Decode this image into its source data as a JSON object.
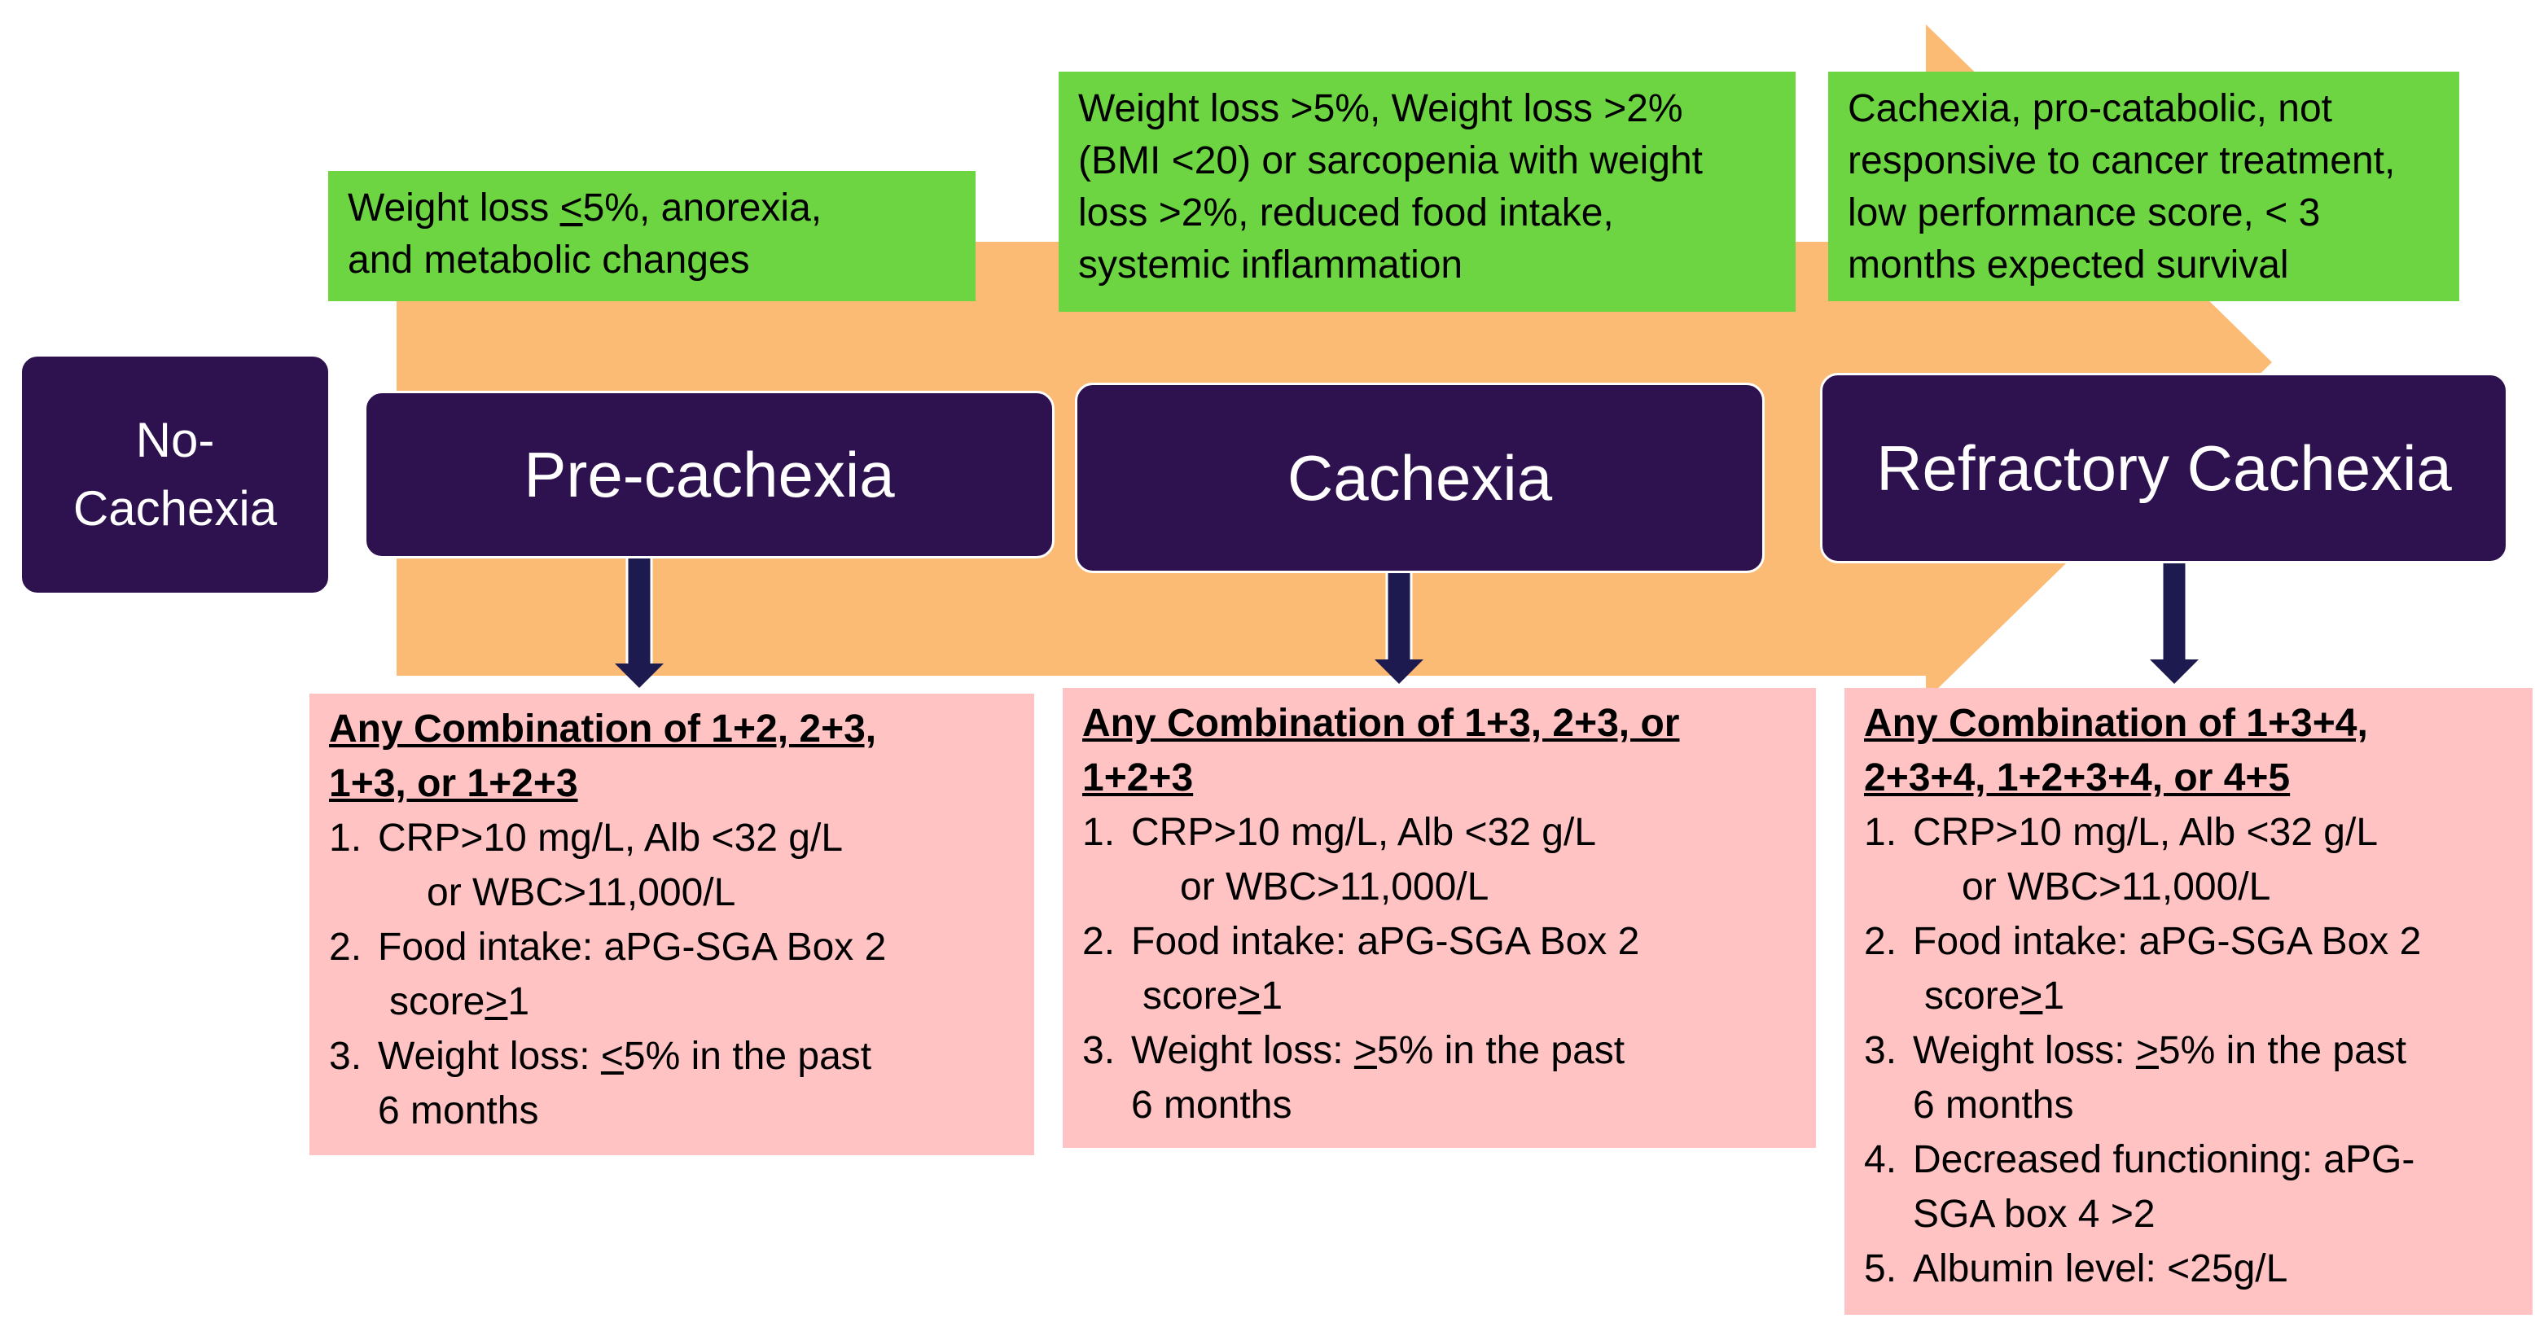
{
  "colors": {
    "band": "#fcbb74",
    "green": "#6dd542",
    "stage": "#2e124f",
    "pink": "#ffc3c3",
    "connector": "#1d1a4f"
  },
  "stages": {
    "no_cachexia": {
      "line1": "No-",
      "line2": "Cachexia"
    },
    "pre_cachexia": "Pre-cachexia",
    "cachexia": "Cachexia",
    "refractory": "Refractory Cachexia"
  },
  "descriptions": {
    "pre_cachexia": {
      "line1_pre": "Weight loss ",
      "line1_sym": "<",
      "line1_post": "5%, anorexia,",
      "line2": "and metabolic changes"
    },
    "cachexia": {
      "line1": "Weight loss >5%, Weight loss >2%",
      "line2": "(BMI <20) or sarcopenia with weight",
      "line3": "loss >2%, reduced food intake,",
      "line4": "systemic inflammation"
    },
    "refractory": {
      "line1": "Cachexia, pro-catabolic, not",
      "line2": "responsive to cancer treatment,",
      "line3": "low performance score, < 3",
      "line4": "months expected survival"
    }
  },
  "criteria": {
    "pre_cachexia": {
      "heading_line1": "Any Combination of 1+2, 2+3,",
      "heading_line2": "1+3, or 1+2+3",
      "c1": {
        "num": "1.",
        "line1": "CRP>10 mg/L, Alb <32 g/L",
        "line2": "or WBC>11,000/L"
      },
      "c2": {
        "num": "2.",
        "line1": "Food intake: aPG-SGA Box 2",
        "line2_pre": "score",
        "line2_sym": ">",
        "line2_post": "1"
      },
      "c3": {
        "num": "3.",
        "line1_pre": "Weight loss: ",
        "line1_sym": "<",
        "line1_post": "5% in the past",
        "line2": "6 months"
      }
    },
    "cachexia": {
      "heading_line1": "Any Combination of 1+3, 2+3, or",
      "heading_line2": "1+2+3",
      "c1": {
        "num": "1.",
        "line1": "CRP>10 mg/L, Alb <32 g/L",
        "line2": "or WBC>11,000/L"
      },
      "c2": {
        "num": "2.",
        "line1": "Food intake: aPG-SGA Box 2",
        "line2_pre": "score",
        "line2_sym": ">",
        "line2_post": "1"
      },
      "c3": {
        "num": "3.",
        "line1_pre": "Weight loss: ",
        "line1_sym": ">",
        "line1_post": "5% in the past",
        "line2": "6 months"
      }
    },
    "refractory": {
      "heading_line1": "Any Combination of  1+3+4,",
      "heading_line2": "2+3+4, 1+2+3+4, or 4+5",
      "c1": {
        "num": "1.",
        "line1": "CRP>10 mg/L, Alb <32 g/L",
        "line2": "or WBC>11,000/L"
      },
      "c2": {
        "num": "2.",
        "line1": "Food intake: aPG-SGA Box 2",
        "line2_pre": "score",
        "line2_sym": ">",
        "line2_post": "1"
      },
      "c3": {
        "num": "3.",
        "line1_pre": "Weight loss: ",
        "line1_sym": ">",
        "line1_post": "5% in the past",
        "line2": "6 months"
      },
      "c4": {
        "num": "4.",
        "line1": "Decreased functioning: aPG-",
        "line2": "SGA box 4 >2"
      },
      "c5": {
        "num": "5.",
        "line1": "Albumin level: <25g/L"
      }
    }
  }
}
